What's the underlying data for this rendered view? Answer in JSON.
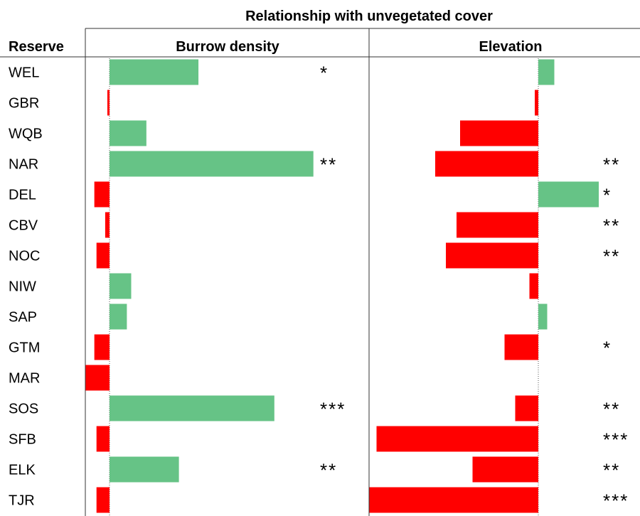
{
  "chart_data": {
    "type": "bar",
    "title": "Relationship with unvegetated cover",
    "row_header": "Reserve",
    "categories": [
      "WEL",
      "GBR",
      "WQB",
      "NAR",
      "DEL",
      "CBV",
      "NOC",
      "NIW",
      "SAP",
      "GTM",
      "MAR",
      "SOS",
      "SFB",
      "ELK",
      "TJR"
    ],
    "panels": [
      {
        "name": "Burrow density",
        "xlim": [
          -0.2,
          1.0
        ],
        "values": [
          0.41,
          -0.01,
          0.17,
          0.94,
          -0.07,
          -0.02,
          -0.06,
          0.1,
          0.08,
          -0.07,
          -0.11,
          0.76,
          -0.06,
          0.32,
          -0.06
        ],
        "significance": [
          "*",
          "",
          "",
          "**",
          "",
          "",
          "",
          "",
          "",
          "",
          "",
          "***",
          "",
          "**",
          ""
        ]
      },
      {
        "name": "Elevation",
        "xlim": [
          -1.0,
          0.5
        ],
        "values": [
          0.09,
          -0.02,
          -0.44,
          -0.58,
          0.34,
          -0.46,
          -0.52,
          -0.05,
          0.05,
          -0.19,
          0.0,
          -0.13,
          -0.91,
          -0.37,
          -0.95
        ],
        "significance": [
          "",
          "",
          "",
          "**",
          "*",
          "**",
          "**",
          "",
          "",
          "*",
          "",
          "**",
          "***",
          "**",
          "***"
        ]
      }
    ],
    "colors": {
      "positive": "#66c386",
      "negative": "#ff0000"
    },
    "grid": false,
    "legend": "none"
  }
}
